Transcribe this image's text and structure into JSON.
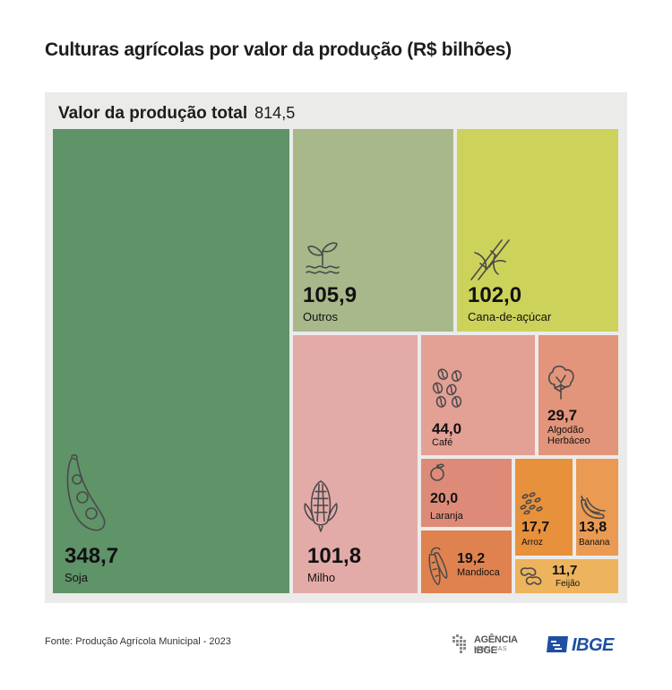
{
  "title": "Culturas agrícolas por valor da produção (R$ bilhões)",
  "total": {
    "label": "Valor da produção total",
    "value": "814,5"
  },
  "chart_data": {
    "type": "treemap",
    "title": "Culturas agrícolas por valor da produção (R$ bilhões)",
    "total": 814.5,
    "items": [
      {
        "name": "Soja",
        "value": 348.7,
        "label": "348,7",
        "color": "#5f9368",
        "icon": "soybean-pod-icon"
      },
      {
        "name": "Outros",
        "value": 105.9,
        "label": "105,9",
        "color": "#a8b88a",
        "icon": "sprout-icon"
      },
      {
        "name": "Cana-de-açúcar",
        "value": 102.0,
        "label": "102,0",
        "color": "#cdd25a",
        "icon": "sugarcane-icon"
      },
      {
        "name": "Milho",
        "value": 101.8,
        "label": "101,8",
        "color": "#e3aba8",
        "icon": "corn-icon"
      },
      {
        "name": "Café",
        "value": 44.0,
        "label": "44,0",
        "color": "#e3a095",
        "icon": "coffee-beans-icon"
      },
      {
        "name": "Algodão\nHerbáceo",
        "value": 29.7,
        "label": "29,7",
        "color": "#e2957b",
        "icon": "cotton-icon"
      },
      {
        "name": "Laranja",
        "value": 20.0,
        "label": "20,0",
        "color": "#dd8b78",
        "icon": "orange-icon"
      },
      {
        "name": "Mandioca",
        "value": 19.2,
        "label": "19,2",
        "color": "#e0824f",
        "icon": "cassava-icon"
      },
      {
        "name": "Arroz",
        "value": 17.7,
        "label": "17,7",
        "color": "#e8913c",
        "icon": "rice-icon"
      },
      {
        "name": "Banana",
        "value": 13.8,
        "label": "13,8",
        "color": "#ea9a52",
        "icon": "banana-icon"
      },
      {
        "name": "Feijão",
        "value": 11.7,
        "label": "11,7",
        "color": "#edb35d",
        "icon": "bean-icon"
      }
    ]
  },
  "footer": {
    "source": "Fonte: Produção Agrícola Municipal - 2023",
    "agencia_line1": "AGÊNCIA IBGE",
    "agencia_line2": "NOTÍCIAS",
    "ibge": "IBGE"
  }
}
